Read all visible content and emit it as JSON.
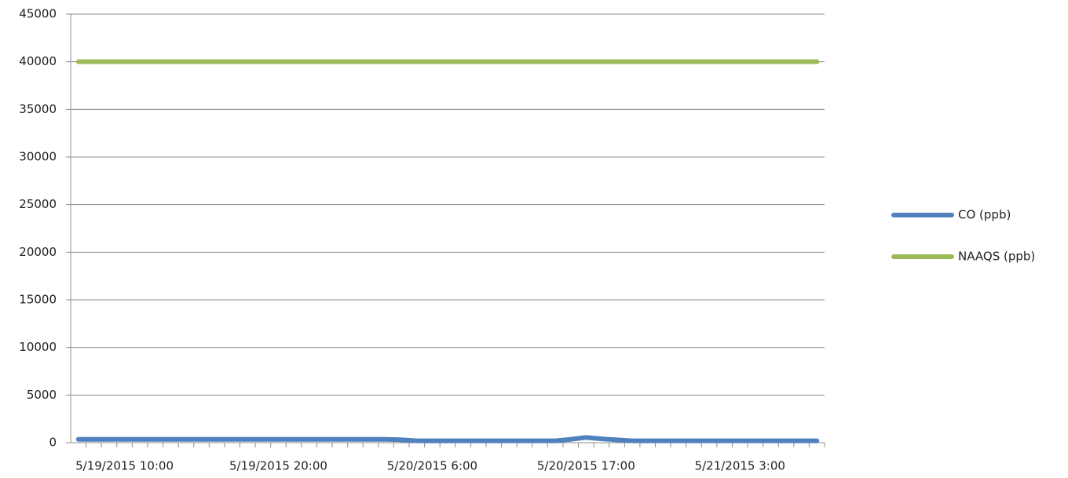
{
  "chart_data": {
    "type": "line",
    "categories": [
      null,
      null,
      null,
      "5/19/2015 10:00",
      null,
      null,
      null,
      null,
      null,
      null,
      null,
      null,
      null,
      "5/19/2015 20:00",
      null,
      null,
      null,
      null,
      null,
      null,
      null,
      null,
      null,
      "5/20/2015 6:00",
      null,
      null,
      null,
      null,
      null,
      null,
      null,
      null,
      null,
      "5/20/2015 17:00",
      null,
      null,
      null,
      null,
      null,
      null,
      null,
      null,
      null,
      "5/21/2015 3:00",
      null,
      null,
      null,
      null,
      null
    ],
    "series": [
      {
        "name": "CO (ppb)",
        "color": "#4f81bd",
        "values": [
          350,
          350,
          350,
          350,
          350,
          350,
          350,
          350,
          350,
          350,
          350,
          350,
          350,
          350,
          350,
          350,
          350,
          350,
          350,
          350,
          350,
          300,
          200,
          200,
          200,
          200,
          200,
          200,
          200,
          200,
          200,
          200,
          350,
          550,
          400,
          300,
          200,
          200,
          200,
          200,
          200,
          200,
          200,
          200,
          200,
          200,
          200,
          200,
          200
        ]
      },
      {
        "name": "NAAQS (ppb)",
        "color": "#9bbb59",
        "values": [
          40000,
          40000,
          40000,
          40000,
          40000,
          40000,
          40000,
          40000,
          40000,
          40000,
          40000,
          40000,
          40000,
          40000,
          40000,
          40000,
          40000,
          40000,
          40000,
          40000,
          40000,
          40000,
          40000,
          40000,
          40000,
          40000,
          40000,
          40000,
          40000,
          40000,
          40000,
          40000,
          40000,
          40000,
          40000,
          40000,
          40000,
          40000,
          40000,
          40000,
          40000,
          40000,
          40000,
          40000,
          40000,
          40000,
          40000,
          40000,
          40000
        ]
      }
    ],
    "ylim": [
      0,
      45000
    ],
    "yticks": [
      0,
      5000,
      10000,
      15000,
      20000,
      25000,
      30000,
      35000,
      40000,
      45000
    ],
    "grid": true,
    "legend": "right"
  }
}
